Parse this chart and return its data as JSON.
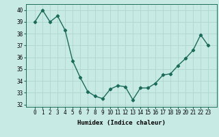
{
  "x": [
    0,
    1,
    2,
    3,
    4,
    5,
    6,
    7,
    8,
    9,
    10,
    11,
    12,
    13,
    14,
    15,
    16,
    17,
    18,
    19,
    20,
    21,
    22,
    23
  ],
  "y": [
    39.0,
    40.0,
    39.0,
    39.5,
    38.3,
    35.7,
    34.3,
    33.1,
    32.7,
    32.5,
    33.3,
    33.6,
    33.5,
    32.4,
    33.4,
    33.4,
    33.8,
    34.5,
    34.6,
    35.3,
    35.9,
    36.6,
    37.9,
    37.0
  ],
  "line_color": "#1a6b5a",
  "marker": "D",
  "markersize": 2.2,
  "linewidth": 1.0,
  "bg_color": "#c8eae5",
  "grid_color": "#b0d5cf",
  "xlabel": "Humidex (Indice chaleur)",
  "ylim": [
    31.8,
    40.5
  ],
  "yticks": [
    32,
    33,
    34,
    35,
    36,
    37,
    38,
    39,
    40
  ],
  "xticks": [
    0,
    1,
    2,
    3,
    4,
    5,
    6,
    7,
    8,
    9,
    10,
    11,
    12,
    13,
    14,
    15,
    16,
    17,
    18,
    19,
    20,
    21,
    22,
    23
  ],
  "xlabel_fontsize": 6.5,
  "tick_fontsize": 5.5
}
